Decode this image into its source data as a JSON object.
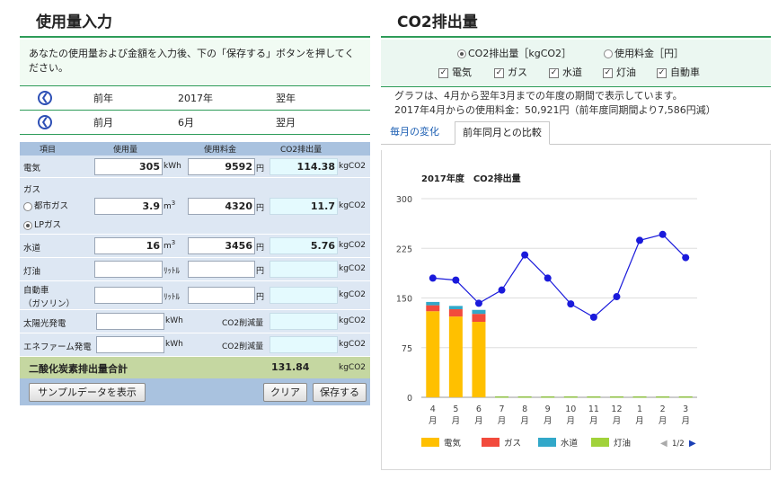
{
  "left_title": "使用量入力",
  "instructions": "あなたの使用量および金額を入力後、下の「保存する」ボタンを押してください。",
  "year_nav": {
    "prev": "前年",
    "current": "2017年",
    "next": "翌年"
  },
  "month_nav": {
    "prev": "前月",
    "current": "6月",
    "next": "翌月"
  },
  "table_headers": {
    "item": "項目",
    "usage": "使用量",
    "fee": "使用料金",
    "co2": "CO2排出量"
  },
  "rows": {
    "electricity": {
      "label": "電気",
      "usage": "305",
      "usage_unit": "kWh",
      "fee": "9592",
      "fee_unit": "円",
      "co2": "114.38",
      "co2_unit": "kgCO2"
    },
    "gas": {
      "label": "ガス",
      "option1": "都市ガス",
      "option2": "LPガス",
      "usage": "3.9",
      "usage_unit": "m",
      "usage_sup": "3",
      "fee": "4320",
      "fee_unit": "円",
      "co2": "11.7",
      "co2_unit": "kgCO2"
    },
    "water": {
      "label": "水道",
      "usage": "16",
      "usage_unit": "m",
      "usage_sup": "3",
      "fee": "3456",
      "fee_unit": "円",
      "co2": "5.76",
      "co2_unit": "kgCO2"
    },
    "kerosene": {
      "label": "灯油",
      "usage": "",
      "usage_unit": "ﾘｯﾄﾙ",
      "fee": "",
      "fee_unit": "円",
      "co2": "",
      "co2_unit": "kgCO2"
    },
    "car": {
      "label": "自動車",
      "sublabel": "（ガソリン）",
      "usage": "",
      "usage_unit": "ﾘｯﾄﾙ",
      "fee": "",
      "fee_unit": "円",
      "co2": "",
      "co2_unit": "kgCO2"
    },
    "solar": {
      "label": "太陽光発電",
      "usage": "",
      "usage_unit": "kWh",
      "reduction_label": "CO2削減量",
      "co2": "",
      "co2_unit": "kgCO2"
    },
    "enefarm": {
      "label": "エネファーム発電",
      "usage": "",
      "usage_unit": "kWh",
      "reduction_label": "CO2削減量",
      "co2": "",
      "co2_unit": "kgCO2"
    }
  },
  "total": {
    "label": "二酸化炭素排出量合計",
    "value": "131.84",
    "unit": "kgCO2"
  },
  "buttons": {
    "sample": "サンプルデータを表示",
    "clear": "クリア",
    "save": "保存する"
  },
  "right_title": "CO2排出量",
  "display_options": {
    "co2": "CO2排出量［kgCO2］",
    "fee": "使用料金［円］",
    "selected": "co2"
  },
  "checkboxes": [
    {
      "label": "電気",
      "checked": true
    },
    {
      "label": "ガス",
      "checked": true
    },
    {
      "label": "水道",
      "checked": true
    },
    {
      "label": "灯油",
      "checked": true
    },
    {
      "label": "自動車",
      "checked": true
    }
  ],
  "note_line1": "グラフは、4月から翌年3月までの年度の期間で表示しています。",
  "note_line2": "2017年4月からの使用料金：50,921円（前年度同期間より7,586円減）",
  "tabs": {
    "monthly": "毎月の変化",
    "yoy": "前年同月との比較",
    "active": "yoy"
  },
  "pagination": "1/2",
  "chart_data": {
    "type": "bar",
    "title": "2017年度　CO2排出量",
    "categories": [
      "4\n月",
      "5\n月",
      "6\n月",
      "7\n月",
      "8\n月",
      "9\n月",
      "10\n月",
      "11\n月",
      "12\n月",
      "1\n月",
      "2\n月",
      "3\n月"
    ],
    "ylim": [
      0,
      300
    ],
    "yticks": [
      0,
      75,
      150,
      225,
      300
    ],
    "grid": true,
    "legend_position": "bottom",
    "series": [
      {
        "name": "電気",
        "color": "#ffc000",
        "values": [
          130,
          122,
          114,
          0,
          0,
          0,
          0,
          0,
          0,
          0,
          0,
          0
        ]
      },
      {
        "name": "ガス",
        "color": "#f24a3c",
        "values": [
          9,
          11,
          12,
          0,
          0,
          0,
          0,
          0,
          0,
          0,
          0,
          0
        ]
      },
      {
        "name": "水道",
        "color": "#32a8c9",
        "values": [
          5,
          5,
          6,
          0,
          0,
          0,
          0,
          0,
          0,
          0,
          0,
          0
        ]
      },
      {
        "name": "灯油",
        "color": "#a1d23a",
        "values": [
          0,
          0,
          0,
          0,
          0,
          0,
          0,
          0,
          0,
          0,
          0,
          0
        ]
      }
    ],
    "line": {
      "color": "#1a1adb",
      "values": [
        180,
        177,
        142,
        162,
        215,
        180,
        141,
        121,
        152,
        237,
        246,
        211
      ]
    }
  }
}
